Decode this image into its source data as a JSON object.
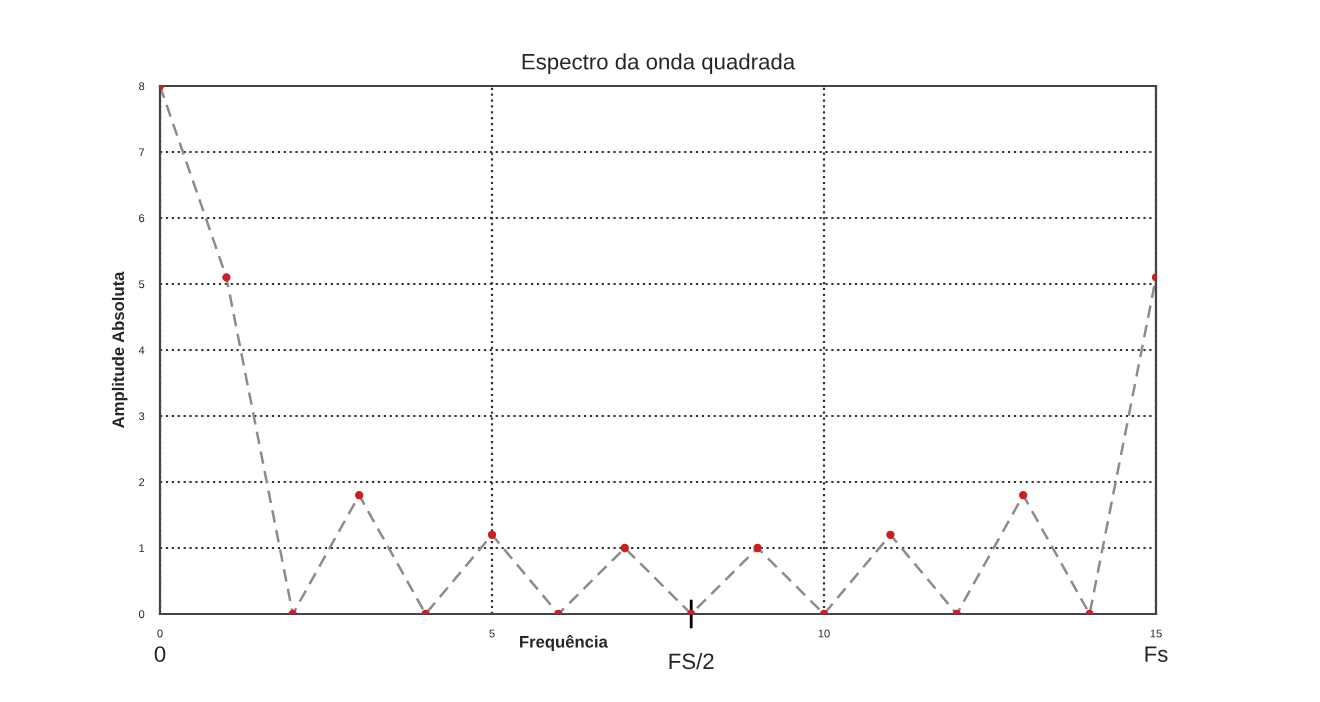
{
  "chart_data": {
    "type": "line",
    "title": "Espectro da onda quadrada",
    "xlabel": "Frequência",
    "ylabel": "Amplitude Absoluta",
    "x": [
      0,
      1,
      2,
      3,
      4,
      5,
      6,
      7,
      8,
      9,
      10,
      11,
      12,
      13,
      14,
      15
    ],
    "series": [
      {
        "color": "#8c8c8c",
        "colors": [
          "#cc1f1f",
          "#cc1f1f",
          "#cc1f1f",
          "#cc1f1f",
          "#cc1f1f",
          "#cc1f1f",
          "#cc1f1f",
          "#cc1f1f",
          "#cc1f1f",
          "#cc1f1f",
          "#cc1f1f",
          "#cc1f1f",
          "#cc1f1f",
          "#cc1f1f",
          "#cc1f1f",
          "#cc1f1f"
        ],
        "values": [
          8,
          5.1,
          0,
          1.8,
          0,
          1.2,
          0,
          1.0,
          0,
          1.0,
          0,
          1.2,
          0,
          1.8,
          0,
          5.1
        ]
      }
    ],
    "xlim": [
      0,
      15
    ],
    "ylim": [
      0,
      8
    ],
    "xticks": [
      0,
      5,
      10,
      15
    ],
    "yticks": [
      0,
      1,
      2,
      3,
      4,
      5,
      6,
      7,
      8
    ],
    "grid": true,
    "marker": "circle",
    "line_style": "dashed",
    "legend": false,
    "annotations": [
      "0",
      {
        "text": "FS/2",
        "x": 8,
        "y": 0
      },
      "Fs"
    ]
  }
}
